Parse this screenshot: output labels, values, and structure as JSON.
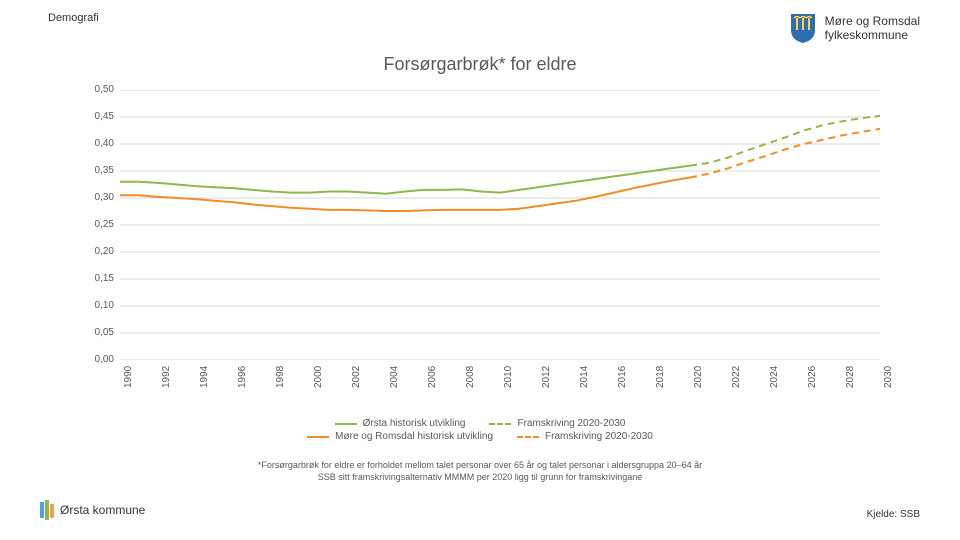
{
  "header": {
    "category": "Demografi",
    "brand_line1": "Møre og Romsdal",
    "brand_line2": "fylkeskommune"
  },
  "chart": {
    "type": "line",
    "title": "Forsørgarbrøk* for eldre",
    "title_fontsize": 18,
    "title_color": "#595959",
    "background_color": "#ffffff",
    "grid_color": "#d9d9d9",
    "axis_label_color": "#595959",
    "axis_fontsize": 10,
    "ylim": [
      0.0,
      0.5
    ],
    "ytick_step": 0.05,
    "yticks": [
      "0,00",
      "0,05",
      "0,10",
      "0,15",
      "0,20",
      "0,25",
      "0,30",
      "0,35",
      "0,40",
      "0,45",
      "0,50"
    ],
    "years": [
      1990,
      1991,
      1992,
      1993,
      1994,
      1995,
      1996,
      1997,
      1998,
      1999,
      2000,
      2001,
      2002,
      2003,
      2004,
      2005,
      2006,
      2007,
      2008,
      2009,
      2010,
      2011,
      2012,
      2013,
      2014,
      2015,
      2016,
      2017,
      2018,
      2019,
      2020,
      2021,
      2022,
      2023,
      2024,
      2025,
      2026,
      2027,
      2028,
      2029,
      2030
    ],
    "xtick_labels": [
      "1990",
      "1992",
      "1994",
      "1996",
      "1998",
      "2000",
      "2002",
      "2004",
      "2006",
      "2008",
      "2010",
      "2012",
      "2014",
      "2016",
      "2018",
      "2020",
      "2022",
      "2024",
      "2026",
      "2028",
      "2030"
    ],
    "series": [
      {
        "key": "orsta_hist",
        "legend": "Ørsta historisk utvikling",
        "color": "#8fb84a",
        "dash": false,
        "line_width": 2,
        "start_year": 1990,
        "end_year": 2020,
        "values": [
          0.33,
          0.33,
          0.328,
          0.325,
          0.322,
          0.32,
          0.318,
          0.315,
          0.312,
          0.31,
          0.31,
          0.312,
          0.312,
          0.31,
          0.308,
          0.312,
          0.315,
          0.315,
          0.316,
          0.312,
          0.31,
          0.315,
          0.32,
          0.325,
          0.33,
          0.335,
          0.34,
          0.345,
          0.35,
          0.355,
          0.36
        ]
      },
      {
        "key": "orsta_proj",
        "legend": "Framskriving 2020-2030",
        "color": "#8fb84a",
        "dash": true,
        "line_width": 2,
        "start_year": 2020,
        "end_year": 2030,
        "values": [
          0.36,
          0.365,
          0.375,
          0.388,
          0.4,
          0.412,
          0.425,
          0.435,
          0.442,
          0.448,
          0.452
        ]
      },
      {
        "key": "mr_hist",
        "legend": "Møre og Romsdal historisk utvikling",
        "color": "#f28c28",
        "dash": false,
        "line_width": 2,
        "start_year": 1990,
        "end_year": 2020,
        "values": [
          0.305,
          0.305,
          0.302,
          0.3,
          0.298,
          0.295,
          0.292,
          0.288,
          0.285,
          0.282,
          0.28,
          0.278,
          0.278,
          0.277,
          0.276,
          0.276,
          0.277,
          0.278,
          0.278,
          0.278,
          0.278,
          0.28,
          0.285,
          0.29,
          0.295,
          0.302,
          0.31,
          0.318,
          0.325,
          0.332,
          0.338
        ]
      },
      {
        "key": "mr_proj",
        "legend": "Framskriving 2020-2030",
        "color": "#f28c28",
        "dash": true,
        "line_width": 2,
        "start_year": 2020,
        "end_year": 2030,
        "values": [
          0.338,
          0.345,
          0.355,
          0.367,
          0.378,
          0.39,
          0.4,
          0.408,
          0.416,
          0.422,
          0.428
        ]
      }
    ]
  },
  "footnote": {
    "line1": "*Forsørgarbrøk for eldre er forholdet mellom talet personar over 65 år og talet personar i aldersgruppa 20–64 år",
    "line2": "SSB sitt framskrivingsalternativ MMMM per 2020 ligg til grunn for framskrivingane"
  },
  "footer": {
    "municipality": "Ørsta kommune",
    "source": "Kjelde: SSB"
  },
  "brand_shield_color": "#2f6db3"
}
